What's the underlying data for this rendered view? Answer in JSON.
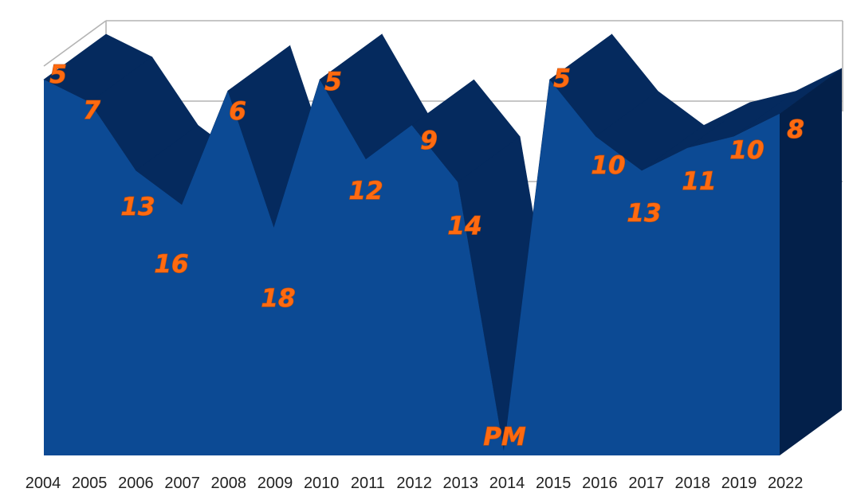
{
  "chart_data": {
    "type": "area",
    "title": "",
    "xlabel": "",
    "ylabel": "",
    "categories": [
      "2004",
      "2005",
      "2006",
      "2007",
      "2008",
      "2009",
      "2010",
      "2011",
      "2012",
      "2013",
      "2014",
      "2015",
      "2016",
      "2017",
      "2018",
      "2019",
      "2022"
    ],
    "values": [
      5,
      7,
      13,
      16,
      6,
      18,
      5,
      12,
      9,
      14,
      null,
      5,
      10,
      13,
      11,
      10,
      8
    ],
    "data_labels": [
      "5",
      "7",
      "13",
      "16",
      "6",
      "18",
      "5",
      "12",
      "9",
      "14",
      "PM",
      "5",
      "10",
      "13",
      "11",
      "10",
      "8"
    ],
    "y_direction": "rank (lower number drawn higher)",
    "ylim": [
      1,
      20
    ],
    "grid": true,
    "legend": "none",
    "style": "3d",
    "colors": {
      "area_front": "#0c4a94",
      "area_depth": "#052a5e",
      "area_side": "#03204a",
      "label": "#ff6a10",
      "grid": "#b4b4b4",
      "background": "#ffffff"
    }
  }
}
